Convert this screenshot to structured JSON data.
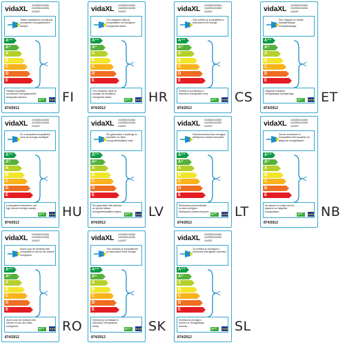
{
  "brand": "vidaXL",
  "codes": [
    "244383/244384",
    "244395/244396",
    "244397"
  ],
  "regulation": "874/2012",
  "mini_class": "A⁺⁺",
  "eu_flag_stars": "★★★",
  "scale": [
    "A⁺⁺",
    "A⁺",
    "A",
    "B",
    "C",
    "D",
    "E"
  ],
  "scale_colors": [
    "#0a9a46",
    "#57b13a",
    "#b5cf2b",
    "#f2e52a",
    "#f8b21b",
    "#ef6e21",
    "#e31d23"
  ],
  "labels": [
    {
      "lang": "FI",
      "desc": "Tähän valaisimeen soveltuvat seuraavien energialuokkien lamput:",
      "foot": "Valaisin myydään seuraavien energialuokkien lamppujen kanssa:"
    },
    {
      "lang": "HR",
      "desc": "Ovo rasvjetno tijelo je kompatibilno sa žaruljama energetskih klasa:",
      "foot": "Ovo rasvjetno tijelo se prodaje sa žaruljama energetske klase:"
    },
    {
      "lang": "CS",
      "desc": "Toto svítidlo je kompatibilní s žárovkami tříd energie:",
      "foot": "Svítidlo je prodáváno s žárovkou energetické třídy:"
    },
    {
      "lang": "ET",
      "desc": "See valgusti on sobilik lambipirnidega energiaklassiga:",
      "foot": "Valgustit müüakse energiaklassi lambipirniga:"
    },
    {
      "lang": "HU",
      "desc": "Ez a lámpatest kompatibilis ezek az energia osztályok:",
      "foot": "A lámpatest értékesítve van egy izzóval energia osztály:"
    },
    {
      "lang": "LV",
      "desc": "Šis gaismeklis ir saderīgs ar spuldzēm ar šādu energoefektivitātes klasi:",
      "foot": "Šis gaismeklis tiek pārdots ar spuldzi šādas energoefektivitātes klases:"
    },
    {
      "lang": "LT",
      "desc": "Šviestuvai tinka šios energijos efektyvumo klasės lemputės:",
      "foot": "Šviestuvas parduodamas su šios energijos efektyvumo klasės lempute:"
    },
    {
      "lang": "NB",
      "desc": "Denne armaturen er kompatibel med lyspærer av følgende energiklasser:",
      "foot": "Armaturen er solgt med en lyspære av følgende energiklasse:"
    },
    {
      "lang": "RO",
      "desc": "Acest corp de iluminat este compatibil cu becuri din clasele energetice:",
      "foot": "Acest corp de iluminat este vândut cu bec din clasa energetică:"
    },
    {
      "lang": "SK",
      "desc": "Toto svietidlo je kompatibilné so žiarovkami tried energie:",
      "foot": "Svietidlo je predávané s žiarovkou energetickej triedy:"
    },
    {
      "lang": "SL",
      "desc": "Ta svetilka je združljiva z žarnicami energijskih razredov:",
      "foot": "Svetilka se prodaja z žarnico iz energijskega razreda:"
    }
  ]
}
